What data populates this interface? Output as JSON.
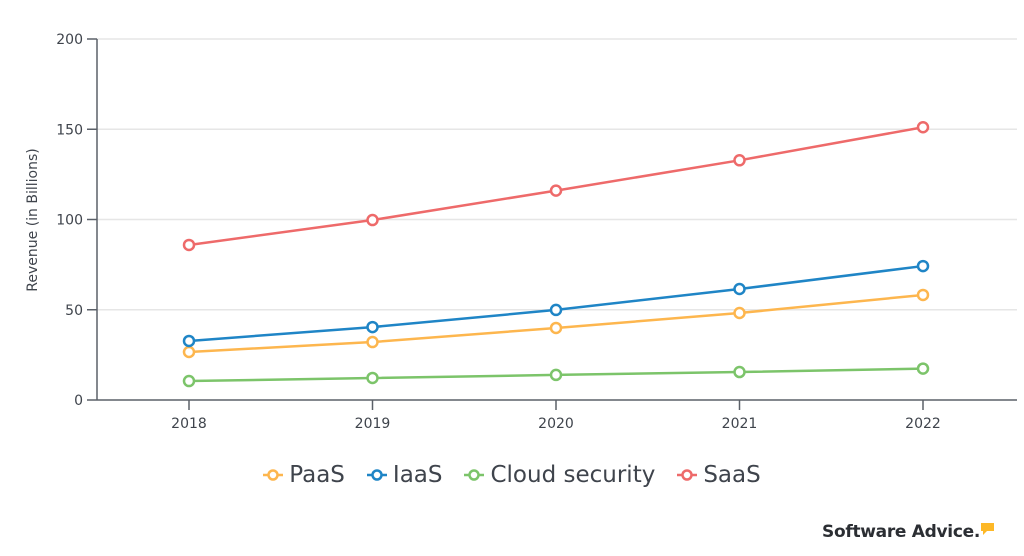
{
  "chart_data": {
    "type": "line",
    "title": "",
    "xlabel": "",
    "ylabel": "Revenue (in Billions)",
    "ylim": [
      0,
      200
    ],
    "yticks": [
      0,
      50,
      100,
      150,
      200
    ],
    "grid": true,
    "legend_position": "bottom",
    "categories": [
      "2018",
      "2019",
      "2020",
      "2021",
      "2022"
    ],
    "series": [
      {
        "name": "PaaS",
        "color": "#fdb64e",
        "values": [
          26.6,
          32.1,
          39.9,
          48.2,
          58.2
        ]
      },
      {
        "name": "IaaS",
        "color": "#1f85c6",
        "values": [
          32.7,
          40.4,
          49.9,
          61.5,
          74.2
        ]
      },
      {
        "name": "Cloud security",
        "color": "#7cc46a",
        "values": [
          10.5,
          12.2,
          13.9,
          15.5,
          17.4
        ]
      },
      {
        "name": "SaaS",
        "color": "#ee6a6a",
        "values": [
          85.9,
          99.7,
          116.0,
          132.8,
          151.1
        ]
      }
    ]
  },
  "branding": {
    "logo_text": "Software Advice.",
    "logo_accent_color": "#fdb827"
  }
}
